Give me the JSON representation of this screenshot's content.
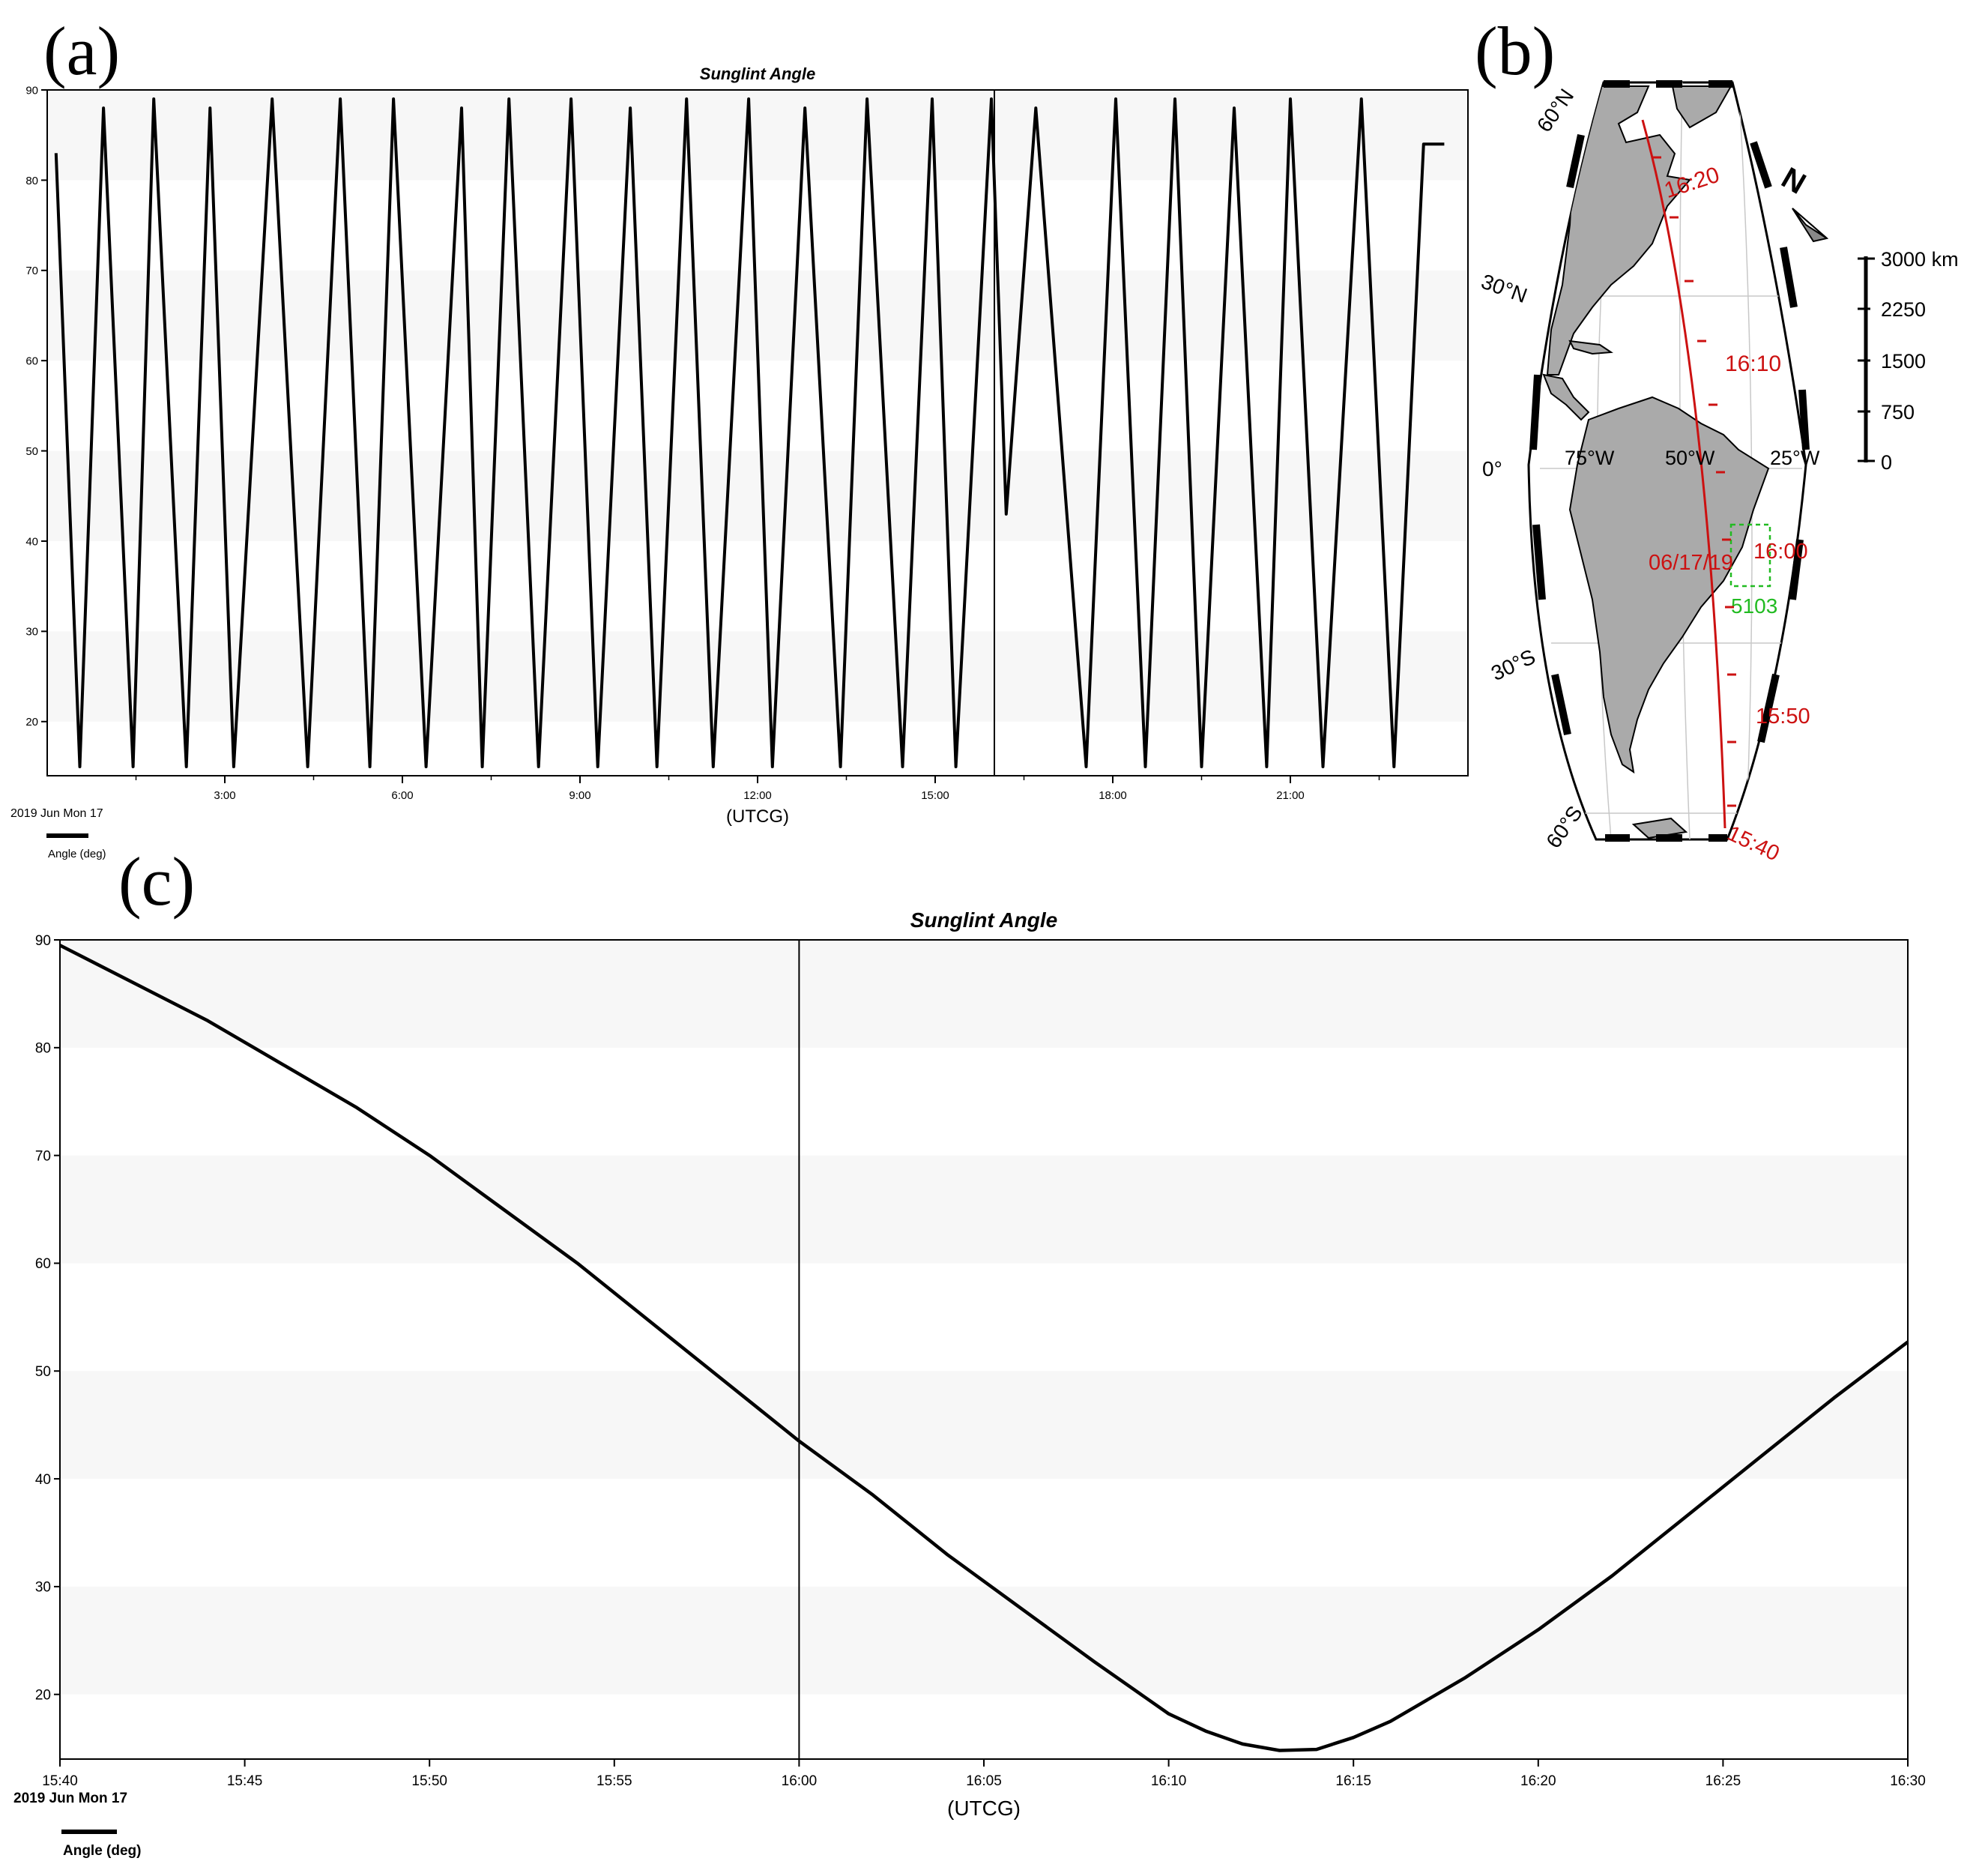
{
  "panels": {
    "a": {
      "label": "(a)"
    },
    "b": {
      "label": "(b)"
    },
    "c": {
      "label": "(c)"
    }
  },
  "chart_data": [
    {
      "id": "a",
      "type": "line",
      "title": "Sunglint Angle",
      "xlabel": "(UTCG)",
      "ylabel": "Angle (deg)",
      "date_label": "2019 Jun Mon 17",
      "xlim_hours": [
        0,
        24
      ],
      "ylim": [
        14,
        90
      ],
      "yticks": [
        20,
        30,
        40,
        50,
        60,
        70,
        80,
        90
      ],
      "xticks": [
        {
          "h": 3,
          "label": "3:00"
        },
        {
          "h": 6,
          "label": "6:00"
        },
        {
          "h": 9,
          "label": "9:00"
        },
        {
          "h": 12,
          "label": "12:00"
        },
        {
          "h": 15,
          "label": "15:00"
        },
        {
          "h": 18,
          "label": "18:00"
        },
        {
          "h": 21,
          "label": "21:00"
        }
      ],
      "minor_xticks_hours": [
        1.5,
        4.5,
        7.5,
        10.5,
        13.5,
        16.5,
        19.5,
        22.5
      ],
      "marker_hour": 16.0,
      "series": [
        {
          "name": "Sunglint Angle",
          "x": [
            0.15,
            0.55,
            0.95,
            1.45,
            1.8,
            2.35,
            2.75,
            3.15,
            3.8,
            4.4,
            4.95,
            5.45,
            5.85,
            6.4,
            7.0,
            7.35,
            7.8,
            8.3,
            8.85,
            9.3,
            9.85,
            10.3,
            10.8,
            11.25,
            11.85,
            12.25,
            12.8,
            13.4,
            13.85,
            14.45,
            14.95,
            15.35,
            15.95,
            16.2,
            16.7,
            17.55,
            18.05,
            18.55,
            19.05,
            19.5,
            20.05,
            20.6,
            21.0,
            21.55,
            22.2,
            22.75,
            23.25,
            23.6
          ],
          "y": [
            83,
            15,
            88,
            15,
            89,
            15,
            88,
            15,
            89,
            15,
            89,
            15,
            89,
            15,
            88,
            15,
            89,
            15,
            89,
            15,
            88,
            15,
            89,
            15,
            89,
            15,
            88,
            15,
            89,
            15,
            89,
            15,
            89,
            43,
            88,
            15,
            89,
            15,
            89,
            15,
            88,
            15,
            89,
            15,
            89,
            15,
            84,
            84
          ]
        }
      ]
    },
    {
      "id": "c",
      "type": "line",
      "title": "Sunglint Angle",
      "xlabel": "(UTCG)",
      "ylabel": "Angle (deg)",
      "date_label": "2019 Jun Mon 17",
      "xlim_minutes": [
        0,
        50
      ],
      "ylim": [
        14,
        90
      ],
      "yticks": [
        20,
        30,
        40,
        50,
        60,
        70,
        80,
        90
      ],
      "xticks": [
        {
          "m": 0,
          "label": "15:40"
        },
        {
          "m": 5,
          "label": "15:45"
        },
        {
          "m": 10,
          "label": "15:50"
        },
        {
          "m": 15,
          "label": "15:55"
        },
        {
          "m": 20,
          "label": "16:00"
        },
        {
          "m": 25,
          "label": "16:05"
        },
        {
          "m": 30,
          "label": "16:10"
        },
        {
          "m": 35,
          "label": "16:15"
        },
        {
          "m": 40,
          "label": "16:20"
        },
        {
          "m": 45,
          "label": "16:25"
        },
        {
          "m": 50,
          "label": "16:30"
        }
      ],
      "marker_minute": 20,
      "series": [
        {
          "name": "Sunglint Angle",
          "x": [
            0,
            2,
            4,
            6,
            8,
            10,
            12,
            14,
            16,
            18,
            20,
            22,
            24,
            26,
            28,
            30,
            31,
            32,
            33,
            34,
            35,
            36,
            38,
            40,
            42,
            44,
            46,
            48,
            50
          ],
          "y": [
            89.5,
            86,
            82.5,
            78.5,
            74.5,
            70,
            65,
            60,
            54.5,
            49,
            43.5,
            38.5,
            33,
            28,
            23,
            18.2,
            16.6,
            15.4,
            14.8,
            14.9,
            16.0,
            17.5,
            21.5,
            26,
            31,
            36.5,
            42,
            47.5,
            52.7
          ]
        }
      ]
    }
  ],
  "map": {
    "lat_labels": [
      "60°N",
      "30°N",
      "0°",
      "30°S",
      "60°S"
    ],
    "lon_labels": [
      "75°W",
      "50°W",
      "25°W"
    ],
    "track_times": [
      "16:20",
      "16:10",
      "06/17/19",
      "16:00",
      "15:50",
      "15:40"
    ],
    "site_id": "5103",
    "north_label": "N",
    "scale_labels": [
      "3000 km",
      "2250",
      "1500",
      "750",
      "0"
    ],
    "colors": {
      "track": "#cc1111",
      "site": "#22bb22",
      "land": "#aaaaaa"
    }
  }
}
